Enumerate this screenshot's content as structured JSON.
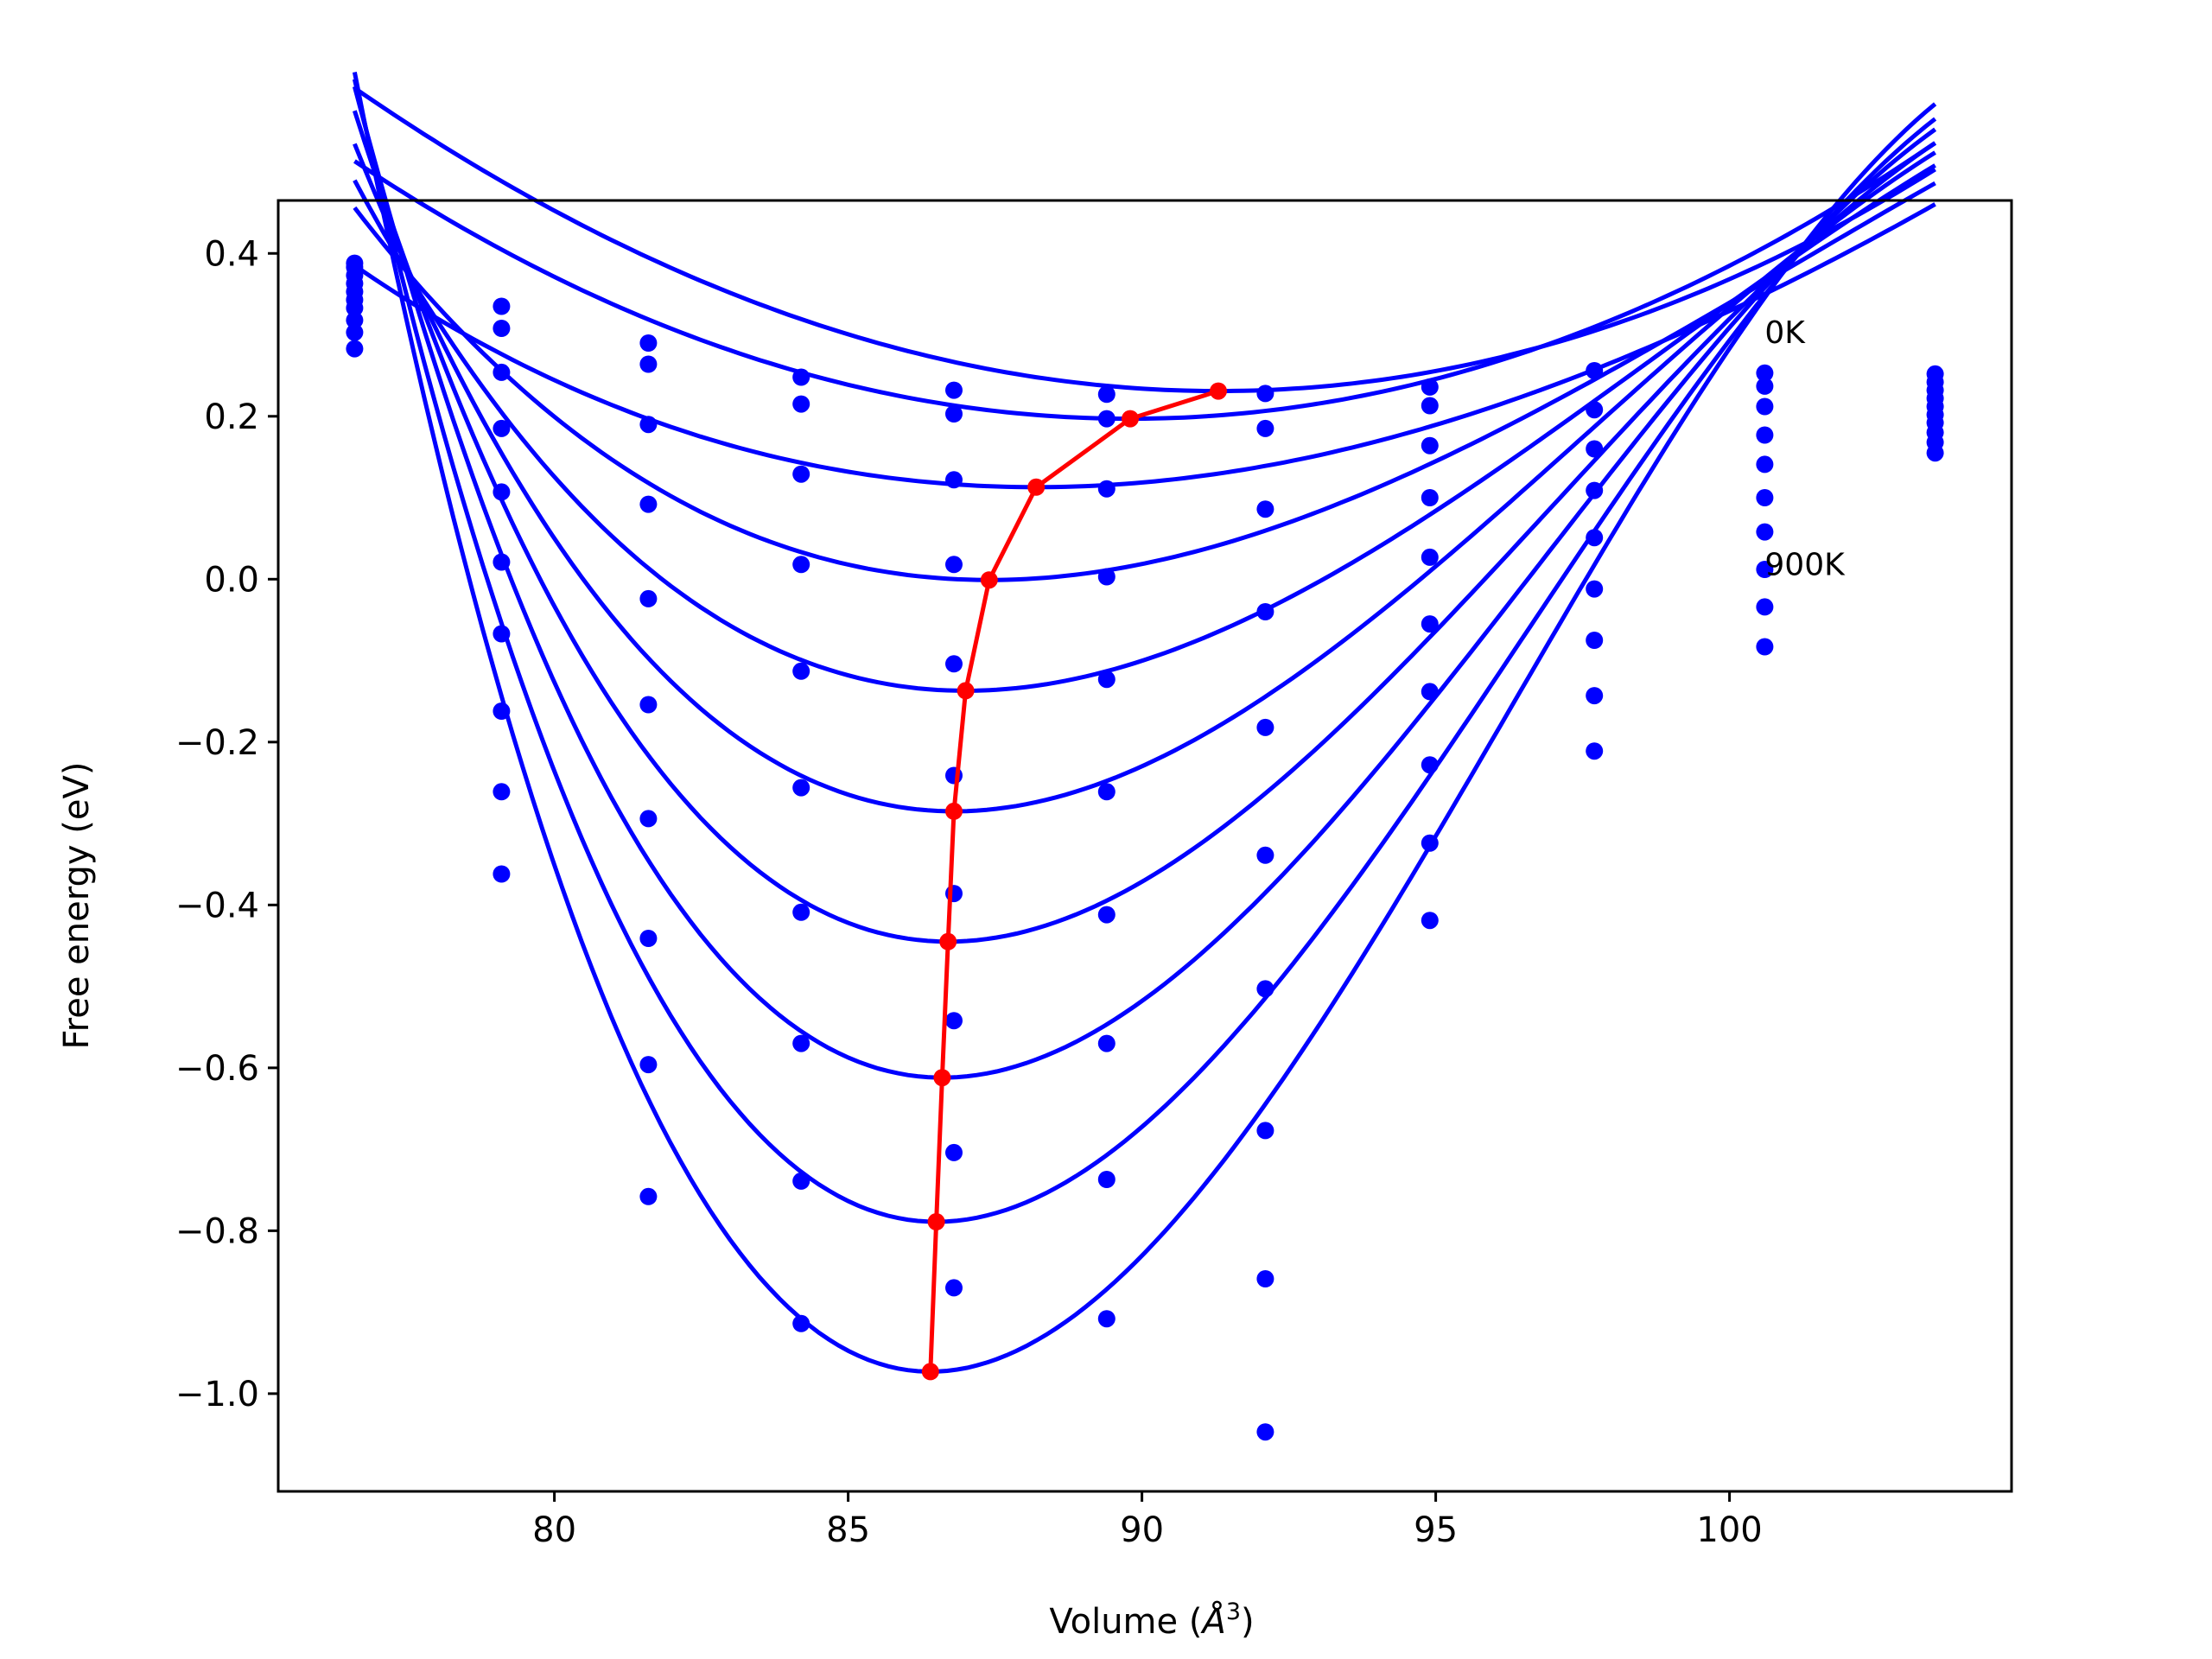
{
  "chart_data": {
    "type": "line",
    "title": "",
    "xlabel": "Volume (",
    "xlabel_symbol": "Å",
    "xlabel_exp": "3",
    "xlabel_close": ")",
    "ylabel": "Free energy (eV)",
    "xlim": [
      75.3,
      104.8
    ],
    "ylim": [
      -1.12,
      0.465
    ],
    "xticks": [
      80,
      85,
      90,
      95,
      100
    ],
    "yticks": [
      0.4,
      0.2,
      0.0,
      -0.2,
      -0.4,
      -0.6,
      -0.8,
      -1.0
    ],
    "xtick_labels": [
      "80",
      "85",
      "90",
      "95",
      "100"
    ],
    "ytick_labels": [
      "0.4",
      "0.2",
      "0.0",
      "−0.2",
      "−0.4",
      "−0.6",
      "−0.8",
      "−1.0"
    ],
    "annotations": [
      {
        "text": "0K",
        "x": 100.6,
        "y": 0.29
      },
      {
        "text": "900K",
        "x": 100.6,
        "y": 0.005
      }
    ],
    "curve_color": "#0000ff",
    "equilibrium_color": "#ff0000",
    "x_points": [
      76.6,
      79.1,
      81.6,
      84.2,
      86.8,
      89.4,
      92.1,
      94.9,
      97.7,
      100.6,
      103.5
    ],
    "series": [
      {
        "points": [
          0.388,
          0.335,
          0.29,
          0.248,
          0.232,
          0.227,
          0.228,
          0.236,
          0.256,
          0.253,
          0.252
        ],
        "fit": {
          "vmin": 91.3,
          "emin": 0.231,
          "a": 0.00178,
          "b": 4e-06
        }
      },
      {
        "points": [
          0.383,
          0.308,
          0.264,
          0.215,
          0.203,
          0.197,
          0.185,
          0.213,
          0.208,
          0.237,
          0.242
        ],
        "fit": {
          "vmin": 89.8,
          "emin": 0.197,
          "a": 0.00181,
          "b": -4e-07
        }
      },
      {
        "points": [
          0.373,
          0.254,
          0.19,
          0.129,
          0.122,
          0.111,
          0.086,
          0.164,
          0.16,
          0.212,
          0.232
        ],
        "fit": {
          "vmin": 88.2,
          "emin": 0.113,
          "a": 0.00179,
          "b": -2e-05
        }
      },
      {
        "points": [
          0.363,
          0.185,
          0.092,
          0.018,
          0.018,
          0.003,
          -0.04,
          0.1,
          0.109,
          0.177,
          0.222
        ],
        "fit": {
          "vmin": 87.4,
          "emin": -0.001,
          "a": 0.0031,
          "b": -7.58e-05
        }
      },
      {
        "points": [
          0.353,
          0.107,
          -0.024,
          -0.113,
          -0.104,
          -0.123,
          -0.182,
          0.027,
          0.051,
          0.141,
          0.212
        ],
        "fit": {
          "vmin": 87.0,
          "emin": -0.137,
          "a": 0.00447,
          "b": -0.0001273
        }
      },
      {
        "points": [
          0.343,
          0.021,
          -0.154,
          -0.256,
          -0.241,
          -0.261,
          -0.339,
          -0.055,
          -0.012,
          0.1,
          0.202
        ],
        "fit": {
          "vmin": 86.8,
          "emin": -0.285,
          "a": 0.00599,
          "b": -0.000185
        }
      },
      {
        "points": [
          0.333,
          -0.067,
          -0.294,
          -0.409,
          -0.386,
          -0.412,
          -0.503,
          -0.138,
          -0.075,
          0.058,
          0.192
        ],
        "fit": {
          "vmin": 86.7,
          "emin": -0.445,
          "a": 0.00755,
          "b": -0.0002426
        }
      },
      {
        "points": [
          0.318,
          -0.162,
          -0.441,
          -0.57,
          -0.542,
          -0.57,
          -0.677,
          -0.228,
          -0.143,
          0.012,
          0.18
        ],
        "fit": {
          "vmin": 86.6,
          "emin": -0.612,
          "a": 0.00916,
          "b": -0.0003008
        }
      },
      {
        "points": [
          0.303,
          -0.261,
          -0.596,
          -0.739,
          -0.704,
          -0.737,
          -0.859,
          -0.324,
          -0.211,
          -0.034,
          0.168
        ],
        "fit": {
          "vmin": 86.5,
          "emin": -0.789,
          "a": 0.01077,
          "b": -0.0003579
        }
      },
      {
        "points": [
          0.283,
          -0.362,
          -0.758,
          -0.914,
          -0.87,
          -0.908,
          -1.047,
          -0.419,
          null,
          -0.083,
          0.155
        ],
        "fit": {
          "vmin": 86.4,
          "emin": -0.973,
          "a": 0.0125,
          "b": -0.0004197
        }
      }
    ],
    "equilibrium": {
      "name": "",
      "x": [
        91.3,
        89.8,
        88.2,
        87.4,
        87.0,
        86.8,
        86.7,
        86.6,
        86.5,
        86.4
      ],
      "y": [
        0.231,
        0.197,
        0.113,
        -0.001,
        -0.137,
        -0.285,
        -0.445,
        -0.612,
        -0.789,
        -0.973
      ]
    }
  }
}
